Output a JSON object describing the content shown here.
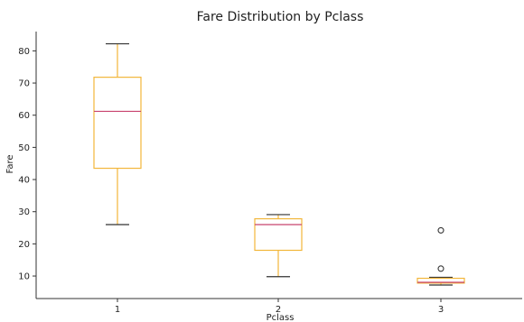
{
  "chart_data": {
    "type": "box",
    "title": "Fare Distribution by Pclass",
    "xlabel": "Pclass",
    "ylabel": "Fare",
    "categories": [
      "1",
      "2",
      "3"
    ],
    "ylim": [
      3,
      86
    ],
    "yticks": [
      10,
      20,
      30,
      40,
      50,
      60,
      70,
      80
    ],
    "boxes": [
      {
        "category": "1",
        "whisker_low": 26,
        "q1": 43.5,
        "median": 61.2,
        "q3": 71.8,
        "whisker_high": 82.2,
        "outliers": []
      },
      {
        "category": "2",
        "whisker_low": 9.8,
        "q1": 18,
        "median": 26,
        "q3": 27.8,
        "whisker_high": 29.1,
        "outliers": []
      },
      {
        "category": "3",
        "whisker_low": 7.2,
        "q1": 7.8,
        "median": 8.05,
        "q3": 9.3,
        "whisker_high": 9.6,
        "outliers": [
          12.3,
          24.2
        ]
      }
    ],
    "colors": {
      "box": "#f2b63a",
      "median": "#c8436e",
      "whisker_cap": "#333333",
      "axis": "#333333",
      "outlier": "#333333"
    }
  }
}
